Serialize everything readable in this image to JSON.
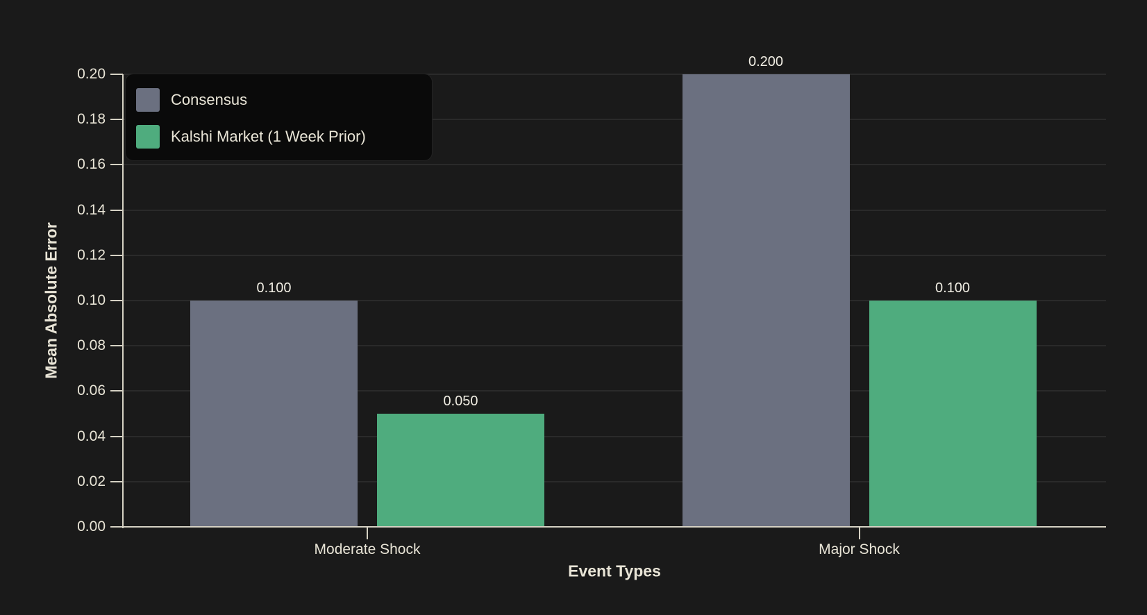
{
  "chart_data": {
    "type": "bar",
    "title": "",
    "xlabel": "Event Types",
    "ylabel": "Mean Absolute Error",
    "categories": [
      "Moderate Shock",
      "Major Shock"
    ],
    "series": [
      {
        "name": "Consensus",
        "color": "#6b7080",
        "values": [
          0.1,
          0.2
        ],
        "labels": [
          "0.100",
          "0.200"
        ]
      },
      {
        "name": "Kalshi Market (1 Week Prior)",
        "color": "#4fac7e",
        "values": [
          0.05,
          0.1
        ],
        "labels": [
          "0.050",
          "0.100"
        ]
      }
    ],
    "ylim": [
      0,
      0.2
    ],
    "ytick_step": 0.02,
    "ytick_labels": [
      "0.00",
      "0.02",
      "0.04",
      "0.06",
      "0.08",
      "0.10",
      "0.12",
      "0.14",
      "0.16",
      "0.18",
      "0.20"
    ],
    "grid": true,
    "legend_position": "upper-left",
    "colors": {
      "background": "#1a1a1a",
      "gridline": "#2a2a2a",
      "axis": "#d6d2c4",
      "text": "#e8e4d6",
      "bar_label_text": "#f0ede3",
      "legend_background": "#0a0a0a",
      "consensus_bar": "#6b7080",
      "kalshi_bar": "#4fac7e"
    }
  }
}
